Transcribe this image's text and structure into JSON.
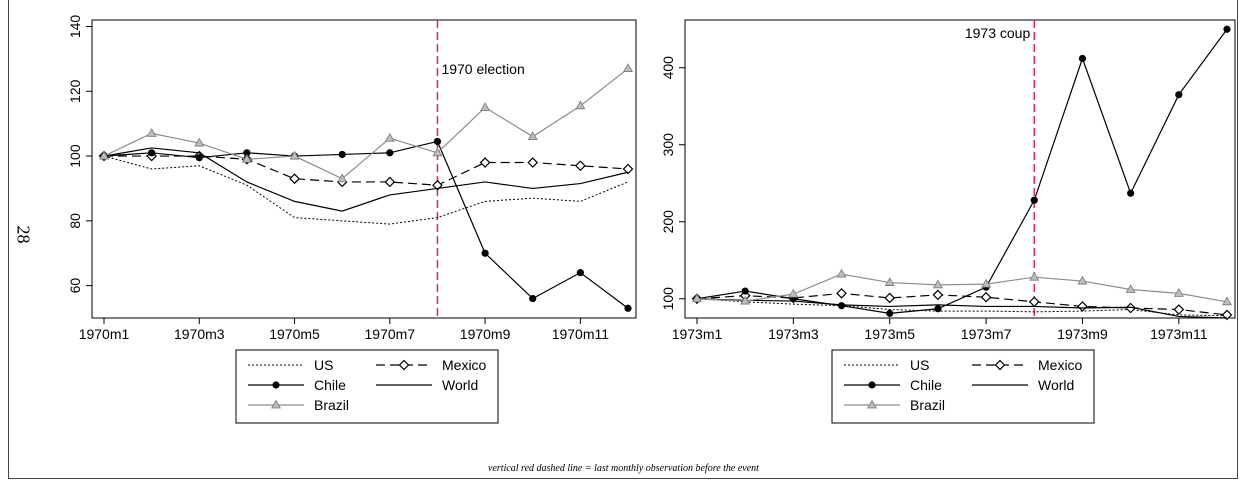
{
  "page_number": "28",
  "footnote": "vertical red dashed line = last monthly observation before the event",
  "colors": {
    "event_line": "#d6336c",
    "brazil": "#8c8c8c",
    "dark": "#000000"
  },
  "chart_data": [
    {
      "type": "line",
      "title": "",
      "xlabel": "",
      "ylabel": "",
      "x": [
        "1970m1",
        "1970m2",
        "1970m3",
        "1970m4",
        "1970m5",
        "1970m6",
        "1970m7",
        "1970m8",
        "1970m9",
        "1970m10",
        "1970m11",
        "1970m12"
      ],
      "xticks": [
        "1970m1",
        "1970m3",
        "1970m5",
        "1970m7",
        "1970m9",
        "1970m11"
      ],
      "yticks": [
        60,
        80,
        100,
        120,
        140
      ],
      "ylim": [
        50,
        142
      ],
      "grid": false,
      "event": {
        "x": "1970m8",
        "label": "1970 election"
      },
      "series": [
        {
          "name": "US",
          "style": "dotted",
          "values": [
            100,
            96,
            97,
            91,
            81,
            80,
            79,
            81,
            86,
            87,
            86,
            92
          ]
        },
        {
          "name": "Mexico",
          "style": "dashed-diamond",
          "values": [
            100,
            100,
            100,
            99,
            93,
            92,
            92,
            91,
            98,
            98,
            97,
            96
          ]
        },
        {
          "name": "Chile",
          "style": "solid-dot",
          "values": [
            100,
            101,
            99.5,
            101,
            100,
            100.5,
            101,
            104.5,
            70,
            56,
            64,
            53
          ]
        },
        {
          "name": "World",
          "style": "solid",
          "values": [
            100,
            102.5,
            101,
            92,
            86,
            83,
            88,
            90,
            92,
            90,
            91.5,
            95
          ]
        },
        {
          "name": "Brazil",
          "style": "gray-triangle",
          "values": [
            100,
            107,
            104,
            99,
            100,
            93,
            105.5,
            101,
            115,
            106,
            115.5,
            127
          ]
        }
      ],
      "legend": [
        "US",
        "Mexico",
        "Chile",
        "World",
        "Brazil"
      ],
      "legend_position": "bottom"
    },
    {
      "type": "line",
      "title": "",
      "xlabel": "",
      "ylabel": "",
      "x": [
        "1973m1",
        "1973m2",
        "1973m3",
        "1973m4",
        "1973m5",
        "1973m6",
        "1973m7",
        "1973m8",
        "1973m9",
        "1973m10",
        "1973m11",
        "1973m12"
      ],
      "xticks": [
        "1973m1",
        "1973m3",
        "1973m5",
        "1973m7",
        "1973m9",
        "1973m11"
      ],
      "yticks": [
        100,
        200,
        300,
        400
      ],
      "ylim": [
        75,
        462
      ],
      "grid": false,
      "event": {
        "x": "1973m8",
        "label": "1973 coup"
      },
      "series": [
        {
          "name": "US",
          "style": "dotted",
          "values": [
            100,
            96,
            93,
            91,
            86,
            84,
            84,
            83,
            84,
            86,
            79,
            78
          ]
        },
        {
          "name": "Mexico",
          "style": "dashed-diamond",
          "values": [
            100,
            104,
            101,
            107,
            101,
            105,
            102,
            96,
            90,
            88,
            86,
            79
          ]
        },
        {
          "name": "Chile",
          "style": "solid-dot",
          "values": [
            100,
            110,
            100,
            91,
            81,
            87,
            115,
            228,
            412,
            237,
            365,
            450
          ]
        },
        {
          "name": "World",
          "style": "solid",
          "values": [
            100,
            98,
            97,
            92,
            90,
            92,
            90,
            90,
            88,
            89,
            77,
            75
          ]
        },
        {
          "name": "Brazil",
          "style": "gray-triangle",
          "values": [
            100,
            97,
            106,
            132,
            121,
            118,
            119,
            128,
            123,
            112,
            107,
            96
          ]
        }
      ],
      "legend": [
        "US",
        "Mexico",
        "Chile",
        "World",
        "Brazil"
      ],
      "legend_position": "bottom"
    }
  ]
}
